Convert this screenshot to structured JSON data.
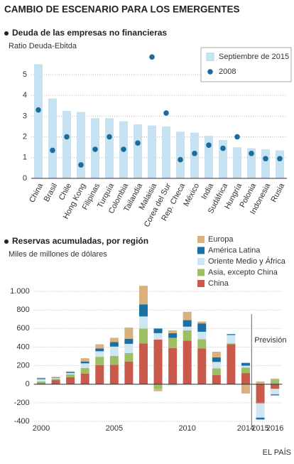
{
  "title": "CAMBIO DE ESCENARIO PARA LOS EMERGENTES",
  "source": "EL PAÍS",
  "chart_data": [
    {
      "type": "bar",
      "title": "Deuda de las empresas no financieras",
      "y_label": "Ratio Deuda-Ebitda",
      "categories": [
        "China",
        "Brasil",
        "Chile",
        "Hong Kong",
        "Filipinas",
        "Turquía",
        "Colombia",
        "Tailandia",
        "Malaisia",
        "Corea del Sur",
        "Rep. Checa",
        "México",
        "India",
        "Sudáfrica",
        "Hungría",
        "Polonia",
        "Indonesia",
        "Rusia"
      ],
      "series": [
        {
          "name": "Septiembre de 2015",
          "type": "bar",
          "color": "#c6e1ef",
          "values": [
            5.5,
            3.85,
            3.25,
            3.2,
            2.9,
            2.9,
            2.75,
            2.6,
            2.55,
            2.5,
            2.25,
            2.2,
            2.05,
            1.85,
            1.5,
            1.45,
            1.4,
            1.35
          ]
        },
        {
          "name": "2008",
          "type": "dot",
          "color": "#1b6c9c",
          "values": [
            3.3,
            1.35,
            2.0,
            0.65,
            1.4,
            2.0,
            1.4,
            1.7,
            5.85,
            3.15,
            0.9,
            1.2,
            1.6,
            1.45,
            2.0,
            1.2,
            0.95,
            0.95
          ]
        }
      ],
      "ylim": [
        0,
        6
      ],
      "yticks": [
        0,
        1,
        2,
        3,
        4,
        5
      ],
      "grid": true,
      "legend": "top-right"
    },
    {
      "type": "stacked_bar",
      "title": "Reservas acumuladas, por región",
      "y_label": "Miles de millones de dólares",
      "annotation": "Previsión",
      "categories": [
        "2000",
        null,
        null,
        null,
        null,
        "2005",
        null,
        null,
        null,
        null,
        "2010",
        null,
        null,
        null,
        "2014",
        "2015",
        "2016"
      ],
      "series": [
        {
          "name": "China",
          "color": "#c9594a",
          "values": [
            10,
            45,
            75,
            115,
            205,
            210,
            245,
            440,
            480,
            390,
            470,
            385,
            100,
            430,
            120,
            -200,
            -50
          ]
        },
        {
          "name": "Asia, excepto China",
          "color": "#9dbf62",
          "values": [
            20,
            15,
            30,
            60,
            90,
            95,
            90,
            160,
            -50,
            110,
            110,
            100,
            70,
            10,
            60,
            -10,
            50
          ]
        },
        {
          "name": "Oriente Medio y África",
          "color": "#cde6f2",
          "values": [
            25,
            10,
            15,
            50,
            60,
            100,
            100,
            130,
            70,
            -15,
            40,
            80,
            70,
            90,
            20,
            -150,
            -60
          ]
        },
        {
          "name": "América Latina",
          "color": "#1a6fa3",
          "values": [
            10,
            5,
            10,
            20,
            30,
            50,
            55,
            130,
            50,
            50,
            70,
            90,
            50,
            10,
            30,
            -20,
            -10
          ]
        },
        {
          "name": "Europa",
          "color": "#d9b07e",
          "values": [
            5,
            5,
            10,
            35,
            45,
            45,
            120,
            200,
            -25,
            30,
            90,
            20,
            60,
            0,
            -100,
            30,
            10
          ]
        }
      ],
      "ylim": [
        -400,
        1100
      ],
      "yticks": [
        -400,
        -200,
        0,
        200,
        400,
        600,
        800,
        {
          "value": 1000,
          "label": "1.000"
        }
      ],
      "grid": true,
      "legend": "top-right"
    }
  ]
}
